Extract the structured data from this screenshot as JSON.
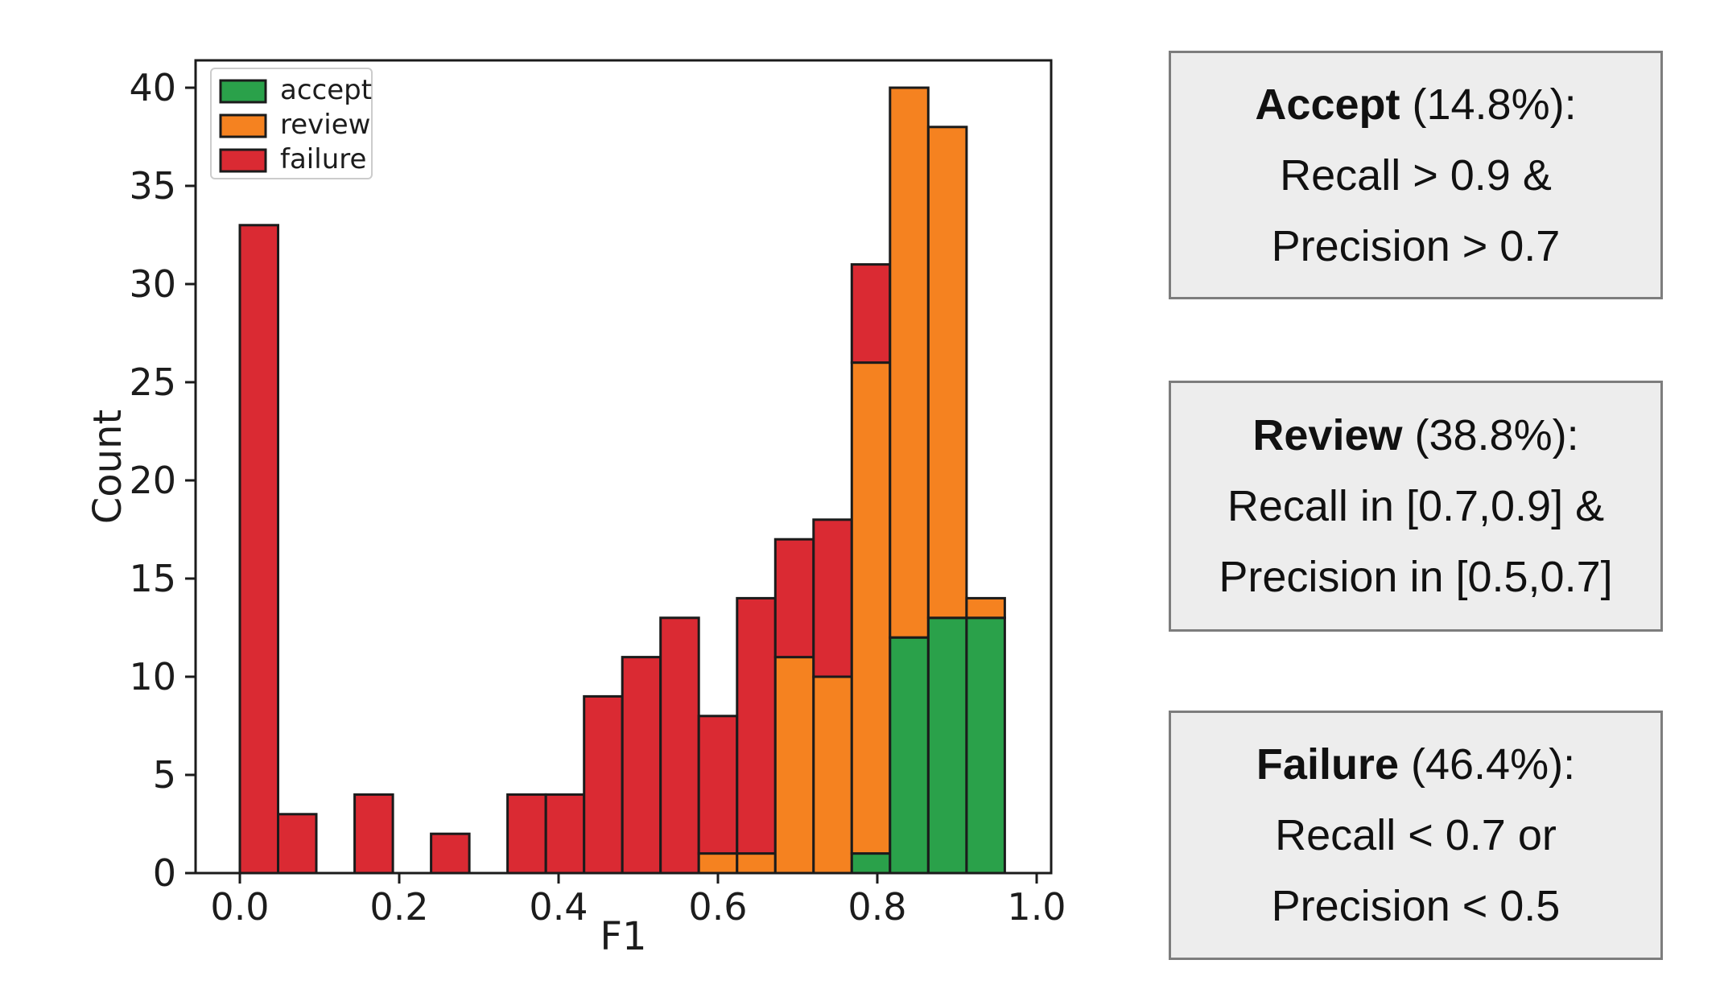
{
  "chart_data": {
    "type": "bar",
    "subtype": "stacked-histogram",
    "title": "",
    "xlabel": "F1",
    "ylabel": "Count",
    "bin_width": 0.048,
    "xlim": [
      -0.056,
      1.018
    ],
    "ylim": [
      0,
      41.4
    ],
    "grid": "off",
    "x_ticks": [
      {
        "v": 0.0,
        "label": "0.0"
      },
      {
        "v": 0.2,
        "label": "0.2"
      },
      {
        "v": 0.4,
        "label": "0.4"
      },
      {
        "v": 0.6,
        "label": "0.6"
      },
      {
        "v": 0.8,
        "label": "0.8"
      },
      {
        "v": 1.0,
        "label": "1.0"
      }
    ],
    "y_ticks": [
      {
        "v": 0,
        "label": "0"
      },
      {
        "v": 5,
        "label": "5"
      },
      {
        "v": 10,
        "label": "10"
      },
      {
        "v": 15,
        "label": "15"
      },
      {
        "v": 20,
        "label": "20"
      },
      {
        "v": 25,
        "label": "25"
      },
      {
        "v": 30,
        "label": "30"
      },
      {
        "v": 35,
        "label": "35"
      },
      {
        "v": 40,
        "label": "40"
      }
    ],
    "series_order": [
      "accept",
      "review",
      "failure"
    ],
    "colors": {
      "accept": "#2aa14a",
      "review": "#f58220",
      "failure": "#da2a33",
      "edge": "#1b1b1b"
    },
    "legend": {
      "position": "upper-left",
      "entries": [
        {
          "label": "accept",
          "color": "#2aa14a"
        },
        {
          "label": "review",
          "color": "#f58220"
        },
        {
          "label": "failure",
          "color": "#da2a33"
        }
      ]
    },
    "bins": [
      {
        "x0": 0.0,
        "accept": 0,
        "review": 0,
        "failure": 33
      },
      {
        "x0": 0.048,
        "accept": 0,
        "review": 0,
        "failure": 3
      },
      {
        "x0": 0.096,
        "accept": 0,
        "review": 0,
        "failure": 0
      },
      {
        "x0": 0.144,
        "accept": 0,
        "review": 0,
        "failure": 4
      },
      {
        "x0": 0.192,
        "accept": 0,
        "review": 0,
        "failure": 0
      },
      {
        "x0": 0.24,
        "accept": 0,
        "review": 0,
        "failure": 2
      },
      {
        "x0": 0.288,
        "accept": 0,
        "review": 0,
        "failure": 0
      },
      {
        "x0": 0.336,
        "accept": 0,
        "review": 0,
        "failure": 4
      },
      {
        "x0": 0.384,
        "accept": 0,
        "review": 0,
        "failure": 4
      },
      {
        "x0": 0.432,
        "accept": 0,
        "review": 0,
        "failure": 9
      },
      {
        "x0": 0.48,
        "accept": 0,
        "review": 0,
        "failure": 11
      },
      {
        "x0": 0.528,
        "accept": 0,
        "review": 0,
        "failure": 13
      },
      {
        "x0": 0.576,
        "accept": 0,
        "review": 1,
        "failure": 7
      },
      {
        "x0": 0.624,
        "accept": 0,
        "review": 1,
        "failure": 13
      },
      {
        "x0": 0.672,
        "accept": 0,
        "review": 11,
        "failure": 6
      },
      {
        "x0": 0.72,
        "accept": 0,
        "review": 10,
        "failure": 8
      },
      {
        "x0": 0.768,
        "accept": 1,
        "review": 25,
        "failure": 5
      },
      {
        "x0": 0.816,
        "accept": 12,
        "review": 28,
        "failure": 0
      },
      {
        "x0": 0.864,
        "accept": 13,
        "review": 25,
        "failure": 0
      },
      {
        "x0": 0.912,
        "accept": 13,
        "review": 1,
        "failure": 0
      }
    ]
  },
  "panels": [
    {
      "title": "Accept",
      "title_rest": " (14.8%):",
      "line2": "Recall > 0.9 &",
      "line3": "Precision > 0.7"
    },
    {
      "title": "Review",
      "title_rest": " (38.8%):",
      "line2": "Recall in [0.7,0.9] &",
      "line3": "Precision in [0.5,0.7]"
    },
    {
      "title": "Failure",
      "title_rest": " (46.4%):",
      "line2": "Recall < 0.7 or",
      "line3": "Precision < 0.5"
    }
  ]
}
